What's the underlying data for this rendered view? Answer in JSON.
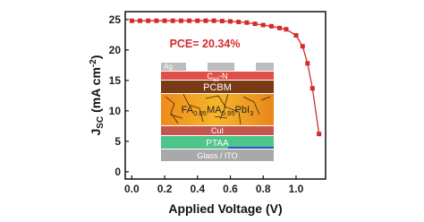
{
  "chart_data": {
    "type": "line",
    "annotation": "PCE= 20.34%",
    "xlabel": "Applied Voltage (V)",
    "ylabel_parts": [
      "J",
      "SC",
      " (mA cm",
      "-2",
      ")"
    ],
    "x": [
      0,
      0.05,
      0.1,
      0.15,
      0.2,
      0.25,
      0.3,
      0.35,
      0.4,
      0.45,
      0.5,
      0.55,
      0.6,
      0.65,
      0.7,
      0.75,
      0.8,
      0.85,
      0.9,
      0.94,
      1.0,
      1.04,
      1.07,
      1.1,
      1.14
    ],
    "series": [
      {
        "color": "#d42a2a",
        "values": [
          24.8,
          24.8,
          24.8,
          24.8,
          24.8,
          24.8,
          24.8,
          24.8,
          24.8,
          24.8,
          24.8,
          24.75,
          24.7,
          24.6,
          24.5,
          24.3,
          24.1,
          23.9,
          23.6,
          23.4,
          22.4,
          20.6,
          17.8,
          13.7,
          6.2
        ]
      }
    ],
    "xlim": [
      -0.04,
      1.18
    ],
    "ylim": [
      -1.2,
      26.3
    ],
    "xticks": [
      {
        "value": 0,
        "label": "0.0"
      },
      {
        "value": 0.2,
        "label": "0.2"
      },
      {
        "value": 0.4,
        "label": "0.4"
      },
      {
        "value": 0.6,
        "label": "0.6"
      },
      {
        "value": 0.8,
        "label": "0.8"
      },
      {
        "value": 1.0,
        "label": "1.0"
      }
    ],
    "yticks": [
      0,
      5,
      10,
      15,
      20,
      25
    ],
    "inset_layers": [
      {
        "label": [
          "Ag"
        ]
      },
      {
        "label": [
          "C",
          "60",
          "-N"
        ]
      },
      {
        "label": [
          "PCBM"
        ]
      },
      {
        "label": [
          "FA",
          "0.05",
          "MA",
          "0.95",
          "PbI",
          "3"
        ]
      },
      {
        "label": [
          "CuI"
        ]
      },
      {
        "label": [
          "PTAA"
        ]
      },
      {
        "label": [
          "Glass / ITO"
        ]
      }
    ]
  }
}
